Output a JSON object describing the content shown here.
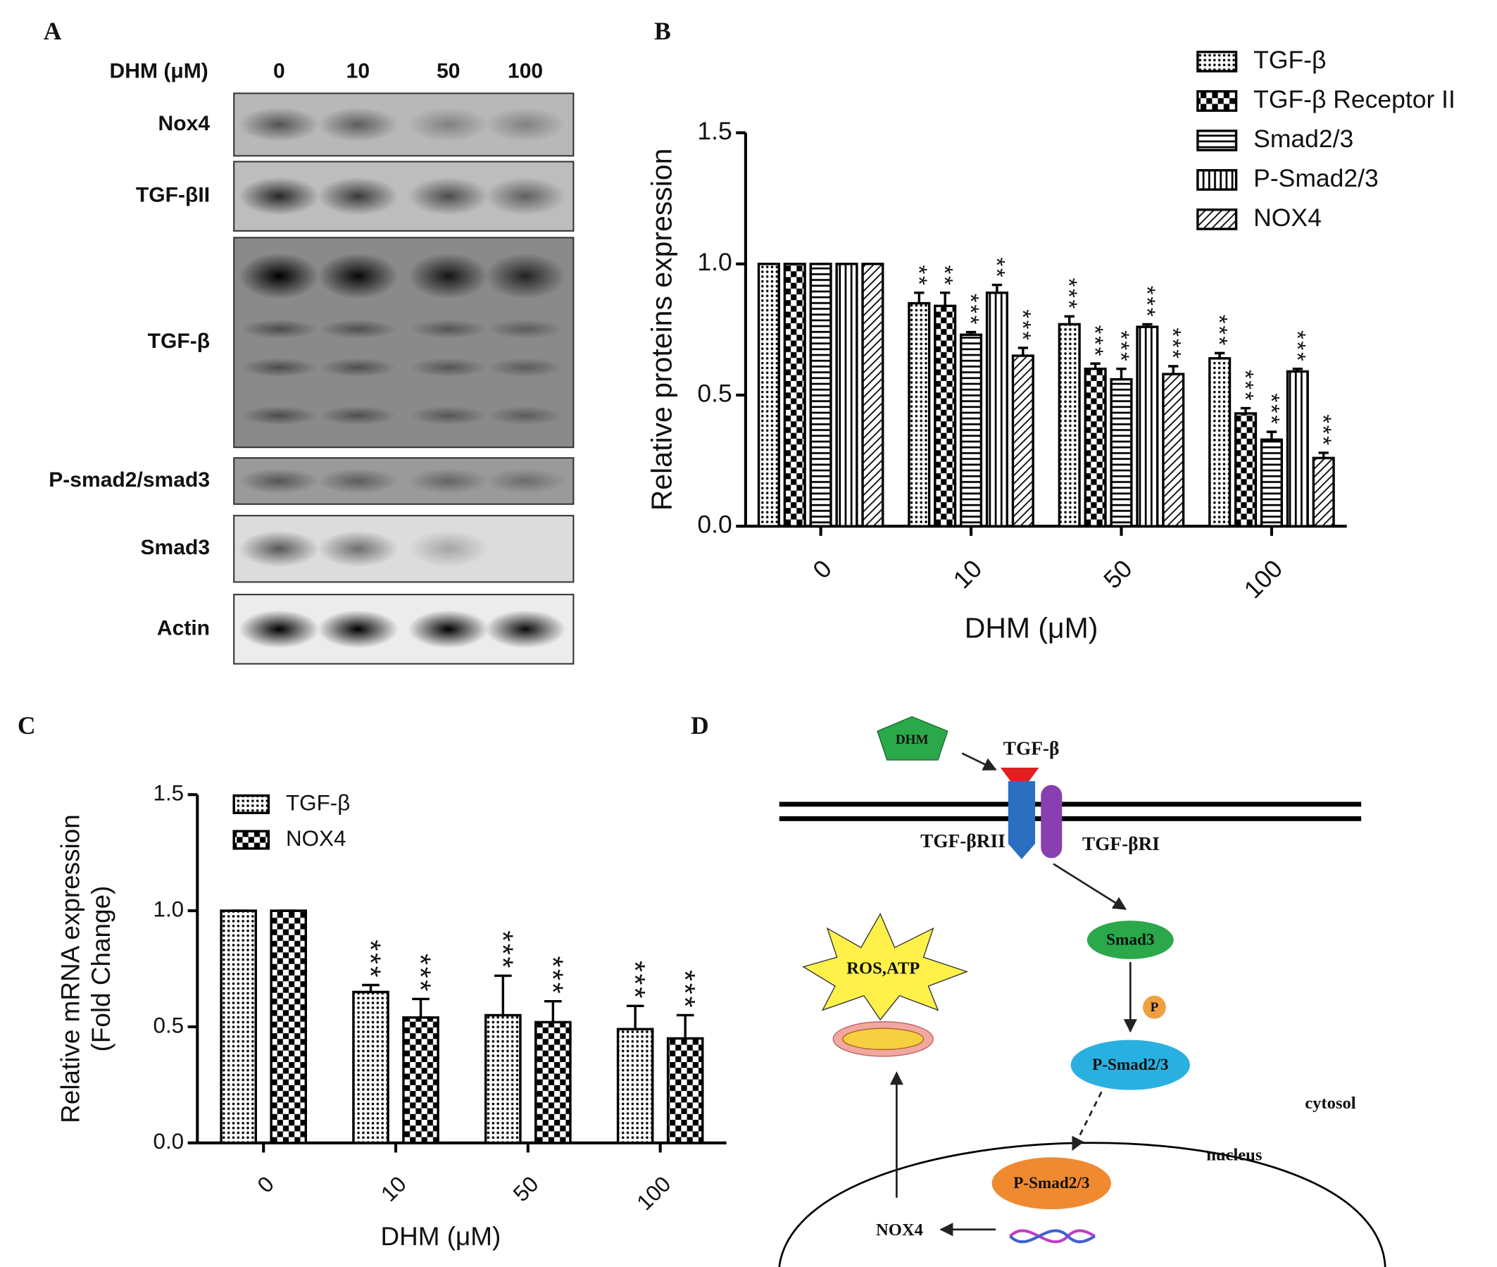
{
  "panels": [
    "A",
    "B",
    "C",
    "D"
  ],
  "blot": {
    "header": "DHM (μM)",
    "doses": [
      "0",
      "10",
      "50",
      "100"
    ],
    "rows": [
      "Nox4",
      "TGF-βII",
      "TGF-β",
      "P-smad2/smad3",
      "Smad3",
      "Actin"
    ]
  },
  "chart_data": [
    {
      "type": "bar",
      "ylabel": [
        "Relative proteins expression"
      ],
      "xlabel": "DHM (μM)",
      "categories": [
        "0",
        "10",
        "50",
        "100"
      ],
      "ylim": [
        0,
        1.5
      ],
      "yticks": [
        {
          "value": 0,
          "label": "0.0"
        },
        0.5,
        {
          "value": 1,
          "label": "1.0"
        },
        1.5
      ],
      "series": [
        {
          "name": "TGF-β",
          "color": "#000000",
          "pattern": "dots",
          "values": [
            1,
            0.85,
            0.77,
            0.64
          ],
          "errors": [
            0,
            0.04,
            0.03,
            0.02
          ],
          "significance": [
            null,
            "**",
            "***",
            "***"
          ]
        },
        {
          "name": "TGF-β Receptor II",
          "color": "#000000",
          "pattern": "checker",
          "values": [
            1,
            0.84,
            0.6,
            0.43
          ],
          "errors": [
            0,
            0.05,
            0.02,
            0.02
          ],
          "significance": [
            null,
            "**",
            "***",
            "***"
          ]
        },
        {
          "name": "Smad2/3",
          "color": "#000000",
          "pattern": "hlines",
          "values": [
            1,
            0.73,
            0.56,
            0.33
          ],
          "errors": [
            0,
            0.01,
            0.04,
            0.03
          ],
          "significance": [
            null,
            "***",
            "***",
            "***"
          ]
        },
        {
          "name": "P-Smad2/3",
          "color": "#000000",
          "pattern": "vlines",
          "values": [
            1,
            0.89,
            0.76,
            0.59
          ],
          "errors": [
            0,
            0.03,
            0.01,
            0.01
          ],
          "significance": [
            null,
            "**",
            "***",
            "***"
          ]
        },
        {
          "name": "NOX4",
          "color": "#000000",
          "pattern": "diag",
          "values": [
            1,
            0.65,
            0.58,
            0.26
          ],
          "errors": [
            0,
            0.03,
            0.03,
            0.02
          ],
          "significance": [
            null,
            "***",
            "***",
            "***"
          ]
        }
      ]
    },
    {
      "type": "bar",
      "ylabel": [
        "Relative mRNA expression",
        "(Fold Change)"
      ],
      "xlabel": "DHM (μM)",
      "categories": [
        "0",
        "10",
        "50",
        "100"
      ],
      "ylim": [
        0,
        1.5
      ],
      "yticks": [
        {
          "value": 0,
          "label": "0.0"
        },
        0.5,
        {
          "value": 1,
          "label": "1.0"
        },
        1.5
      ],
      "series": [
        {
          "name": "TGF-β",
          "color": "#000000",
          "pattern": "dots",
          "values": [
            1,
            0.65,
            0.55,
            0.49
          ],
          "errors": [
            0,
            0.03,
            0.17,
            0.1
          ],
          "significance": [
            null,
            "***",
            "***",
            "***"
          ]
        },
        {
          "name": "NOX4",
          "color": "#000000",
          "pattern": "checker",
          "values": [
            1,
            0.54,
            0.52,
            0.45
          ],
          "errors": [
            0,
            0.08,
            0.09,
            0.1
          ],
          "significance": [
            null,
            "***",
            "***",
            "***"
          ]
        }
      ]
    }
  ],
  "diagram": {
    "nodes": [
      {
        "label": "DHM"
      },
      {
        "label": "TGF-β"
      },
      {
        "label": "TGF-βRII"
      },
      {
        "label": "TGF-βRI"
      },
      {
        "label": "Smad3"
      },
      {
        "label": "P"
      },
      {
        "label": "P-Smad2/3"
      },
      {
        "label": "cytosol"
      },
      {
        "label": "nucleus"
      },
      {
        "label": "P-Smad2/3"
      },
      {
        "label": "NOX4"
      },
      {
        "label": "ROS,ATP"
      }
    ]
  }
}
